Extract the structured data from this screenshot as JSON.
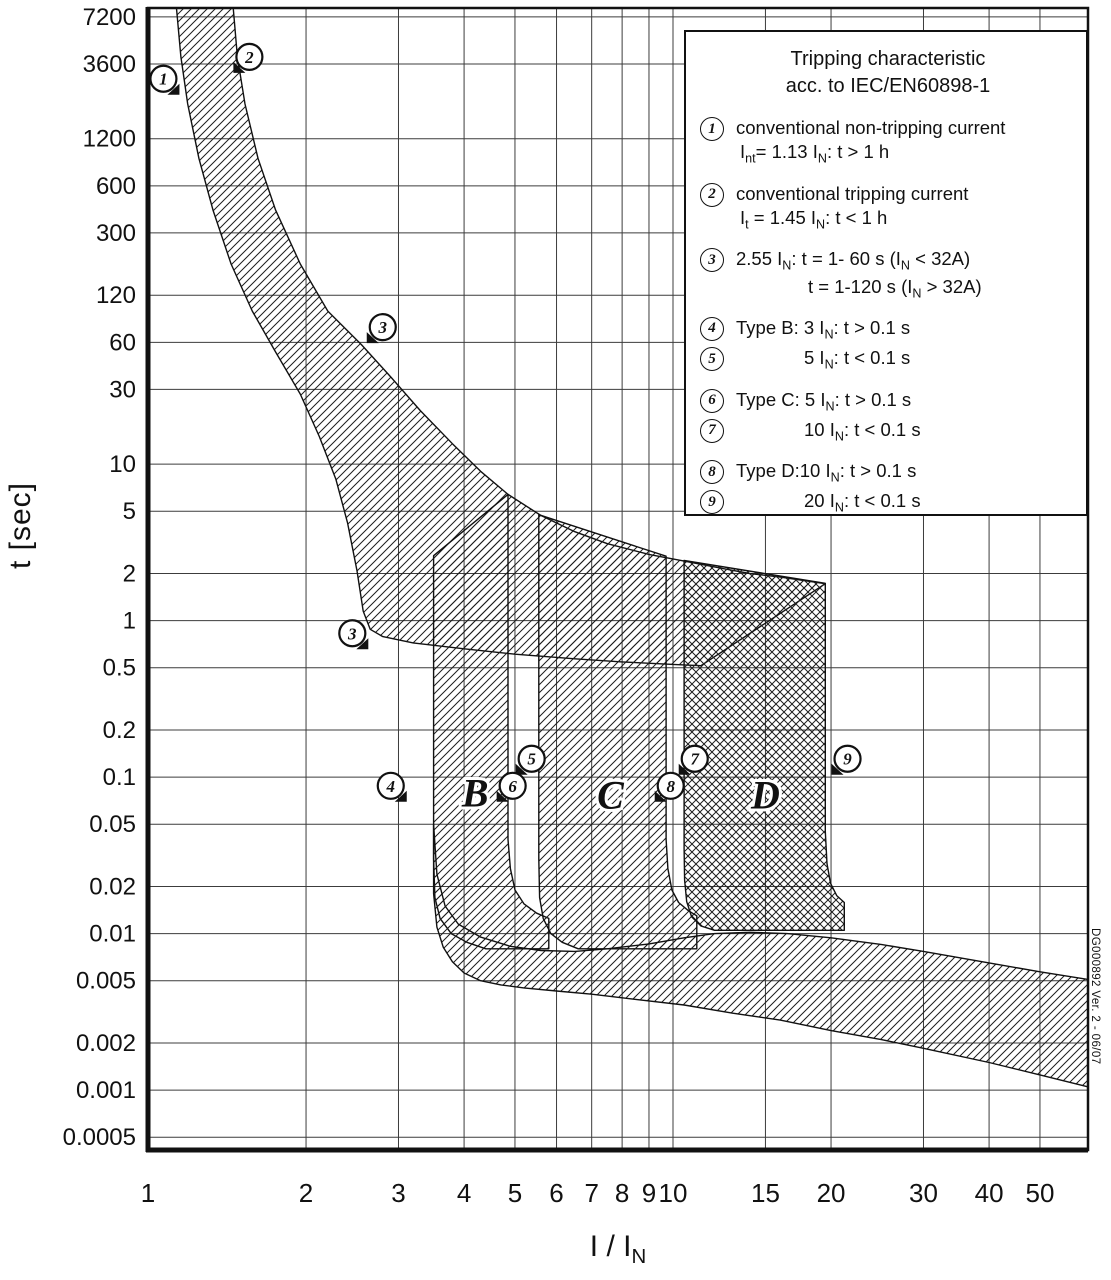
{
  "figure": {
    "bg": "#ffffff",
    "ink": "#111111"
  },
  "axes": {
    "ylabel": "t [sec]",
    "xlabel_rich": "I / I~N~"
  },
  "chart_data": {
    "type": "area",
    "title": "Tripping characteristic acc. to IEC/EN60898-1",
    "xlabel": "I / IN  (multiple of rated current, log scale)",
    "ylabel": "t [sec] (log scale)",
    "x_scale": "log",
    "y_scale": "log",
    "x_range": [
      1,
      61.7
    ],
    "y_range": [
      0.00041,
      8470
    ],
    "grid": "on",
    "legend_position": "top-right",
    "x_ticks": [
      "1",
      "2",
      "3",
      "4",
      "5",
      "6",
      "7",
      "8",
      "9",
      "10",
      "15",
      "20",
      "30",
      "40",
      "50"
    ],
    "y_ticks": [
      "7200",
      "3600",
      "1200",
      "600",
      "300",
      "120",
      "60",
      "30",
      "10",
      "5",
      "2",
      "1",
      "0.5",
      "0.2",
      "0.1",
      "0.05",
      "0.02",
      "0.01",
      "0.005",
      "0.002",
      "0.001",
      "0.0005"
    ],
    "bands": [
      {
        "name": "thermal-tripping-band",
        "hatch": "single",
        "upper": [
          [
            1.45,
            9000
          ],
          [
            1.48,
            4000
          ],
          [
            1.53,
            2000
          ],
          [
            1.62,
            900
          ],
          [
            1.75,
            420
          ],
          [
            1.95,
            190
          ],
          [
            2.2,
            95
          ],
          [
            2.55,
            58
          ],
          [
            2.9,
            36
          ],
          [
            3.3,
            22
          ],
          [
            3.8,
            13.5
          ],
          [
            4.3,
            9
          ],
          [
            4.85,
            6.4
          ],
          [
            5.6,
            4.7
          ],
          [
            6.5,
            3.7
          ],
          [
            7.5,
            3.1
          ],
          [
            9,
            2.65
          ],
          [
            10.5,
            2.4
          ],
          [
            12,
            2.2
          ],
          [
            14,
            2.0
          ],
          [
            16,
            1.9
          ],
          [
            19.5,
            1.72
          ]
        ],
        "lower": [
          [
            1.13,
            9000
          ],
          [
            1.155,
            4000
          ],
          [
            1.19,
            2000
          ],
          [
            1.25,
            900
          ],
          [
            1.33,
            420
          ],
          [
            1.44,
            190
          ],
          [
            1.58,
            95
          ],
          [
            1.75,
            52
          ],
          [
            1.95,
            28
          ],
          [
            2.12,
            15
          ],
          [
            2.28,
            8
          ],
          [
            2.4,
            4.2
          ],
          [
            2.5,
            2.1
          ],
          [
            2.57,
            1.15
          ],
          [
            2.65,
            0.88
          ],
          [
            2.8,
            0.79
          ],
          [
            3.2,
            0.72
          ],
          [
            4,
            0.66
          ],
          [
            5,
            0.61
          ],
          [
            6.5,
            0.57
          ],
          [
            8,
            0.545
          ],
          [
            10,
            0.525
          ],
          [
            11.3,
            0.515
          ]
        ]
      },
      {
        "name": "type-b-magnetic-band",
        "hatch": "single",
        "points": [
          [
            3.5,
            2.6
          ],
          [
            4.85,
            6.4
          ],
          [
            4.85,
            0.04
          ],
          [
            4.9,
            0.026
          ],
          [
            5.0,
            0.019
          ],
          [
            5.2,
            0.0155
          ],
          [
            5.5,
            0.0135
          ],
          [
            5.8,
            0.0125
          ],
          [
            5.8,
            0.008
          ],
          [
            4.4,
            0.008
          ],
          [
            4.05,
            0.0088
          ],
          [
            3.78,
            0.01
          ],
          [
            3.6,
            0.0125
          ],
          [
            3.52,
            0.017
          ],
          [
            3.5,
            0.03
          ]
        ]
      },
      {
        "name": "type-c-magnetic-band",
        "hatch": "single",
        "points": [
          [
            5.55,
            4.75
          ],
          [
            9.7,
            2.58
          ],
          [
            9.7,
            0.04
          ],
          [
            9.78,
            0.026
          ],
          [
            9.95,
            0.019
          ],
          [
            10.25,
            0.0158
          ],
          [
            10.7,
            0.014
          ],
          [
            11.1,
            0.013
          ],
          [
            11.1,
            0.008
          ],
          [
            6.6,
            0.008
          ],
          [
            6.15,
            0.0088
          ],
          [
            5.85,
            0.01
          ],
          [
            5.66,
            0.0125
          ],
          [
            5.57,
            0.017
          ],
          [
            5.55,
            0.03
          ]
        ]
      },
      {
        "name": "type-d-magnetic-band",
        "hatch": "cross",
        "points": [
          [
            10.5,
            2.42
          ],
          [
            19.5,
            1.73
          ],
          [
            19.5,
            0.045
          ],
          [
            19.65,
            0.028
          ],
          [
            19.95,
            0.021
          ],
          [
            20.5,
            0.0175
          ],
          [
            21.2,
            0.0158
          ],
          [
            21.2,
            0.0105
          ],
          [
            12.0,
            0.0105
          ],
          [
            11.3,
            0.0112
          ],
          [
            10.85,
            0.0128
          ],
          [
            10.62,
            0.016
          ],
          [
            10.52,
            0.022
          ],
          [
            10.5,
            0.035
          ]
        ]
      },
      {
        "name": "instantaneous-trip-band",
        "hatch": "single",
        "points": [
          [
            3.5,
            0.05
          ],
          [
            3.55,
            0.024
          ],
          [
            3.68,
            0.015
          ],
          [
            3.9,
            0.0115
          ],
          [
            4.3,
            0.0095
          ],
          [
            4.9,
            0.0083
          ],
          [
            5.6,
            0.0078
          ],
          [
            6.5,
            0.0077
          ],
          [
            7.5,
            0.008
          ],
          [
            9,
            0.0086
          ],
          [
            10.5,
            0.0094
          ],
          [
            12,
            0.01
          ],
          [
            14,
            0.0102
          ],
          [
            16.5,
            0.01
          ],
          [
            20,
            0.0094
          ],
          [
            25,
            0.0085
          ],
          [
            30,
            0.0077
          ],
          [
            40,
            0.0065
          ],
          [
            50,
            0.0057
          ],
          [
            61.7,
            0.0051
          ],
          [
            61.7,
            0.00105
          ],
          [
            50,
            0.00125
          ],
          [
            40,
            0.0015
          ],
          [
            30,
            0.00185
          ],
          [
            25,
            0.0021
          ],
          [
            20,
            0.0024
          ],
          [
            16,
            0.0028
          ],
          [
            13,
            0.0031
          ],
          [
            10.5,
            0.0035
          ],
          [
            8.5,
            0.0038
          ],
          [
            7,
            0.0041
          ],
          [
            6,
            0.0043
          ],
          [
            5.2,
            0.0045
          ],
          [
            4.7,
            0.0047
          ],
          [
            4.3,
            0.005
          ],
          [
            4.0,
            0.0056
          ],
          [
            3.8,
            0.0066
          ],
          [
            3.65,
            0.0082
          ],
          [
            3.55,
            0.011
          ],
          [
            3.5,
            0.018
          ]
        ]
      }
    ],
    "markers": [
      {
        "label": "1",
        "x": 1.07,
        "t": 2900,
        "flag": "br"
      },
      {
        "label": "2",
        "x": 1.56,
        "t": 4000,
        "flag": "bl"
      },
      {
        "label": "3",
        "x": 2.8,
        "t": 75,
        "flag": "bl"
      },
      {
        "label": "3",
        "x": 2.45,
        "t": 0.83,
        "flag": "br"
      },
      {
        "label": "4",
        "x": 2.9,
        "t": 0.088,
        "flag": "br"
      },
      {
        "label": "5",
        "x": 5.38,
        "t": 0.131,
        "flag": "bl"
      },
      {
        "label": "6",
        "x": 4.95,
        "t": 0.088,
        "flag": "bl"
      },
      {
        "label": "7",
        "x": 11.0,
        "t": 0.131,
        "flag": "bl"
      },
      {
        "label": "8",
        "x": 9.9,
        "t": 0.088,
        "flag": "bl"
      },
      {
        "label": "9",
        "x": 21.5,
        "t": 0.131,
        "flag": "bl"
      }
    ],
    "region_labels": [
      {
        "text": "B",
        "x": 4.2,
        "t": 0.082
      },
      {
        "text": "C",
        "x": 7.6,
        "t": 0.08
      },
      {
        "text": "D",
        "x": 15.0,
        "t": 0.08
      }
    ]
  },
  "legend": {
    "title_line1": "Tripping characteristic",
    "title_line2": "acc. to IEC/EN60898-1",
    "items": [
      {
        "num": "1",
        "gap": false,
        "lines": [
          "conventional non-tripping current",
          "I~nt~= 1.13 I~N~: t > 1 h"
        ],
        "line_indents": [
          0,
          1
        ]
      },
      {
        "num": "2",
        "gap": true,
        "lines": [
          "conventional tripping current",
          "I~t~ = 1.45 I~N~: t < 1 h"
        ],
        "line_indents": [
          0,
          1
        ]
      },
      {
        "num": "3",
        "gap": true,
        "lines": [
          "2.55 I~N~: t = 1- 60 s (I~N~ < 32A)",
          "t = 1-120 s (I~N~ > 32A)"
        ],
        "line_indents": [
          0,
          2
        ]
      },
      {
        "num": "4",
        "gap": true,
        "lines": [
          "Type B: 3 I~N~: t > 0.1 s"
        ],
        "line_indents": [
          0
        ]
      },
      {
        "num": "5",
        "gap": false,
        "lines": [
          "5 I~N~: t < 0.1 s"
        ],
        "line_indents": [
          3
        ]
      },
      {
        "num": "6",
        "gap": true,
        "lines": [
          "Type C: 5 I~N~: t > 0.1 s"
        ],
        "line_indents": [
          0
        ]
      },
      {
        "num": "7",
        "gap": false,
        "lines": [
          "10 I~N~: t < 0.1 s"
        ],
        "line_indents": [
          3
        ]
      },
      {
        "num": "8",
        "gap": true,
        "lines": [
          "Type D:10 I~N~: t > 0.1 s"
        ],
        "line_indents": [
          0
        ]
      },
      {
        "num": "9",
        "gap": false,
        "lines": [
          "20 I~N~: t < 0.1 s"
        ],
        "line_indents": [
          3
        ]
      }
    ]
  },
  "watermark": "DG000892 Ver. 2 - 06/07"
}
